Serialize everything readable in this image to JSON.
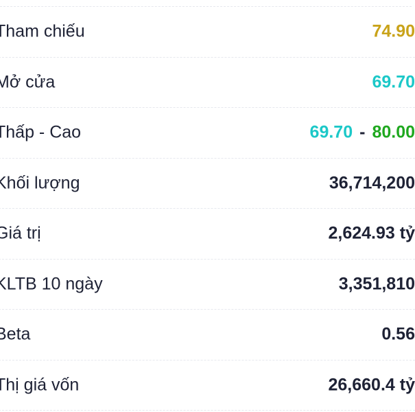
{
  "colors": {
    "reference": "#c9a31a",
    "cyan": "#1cc8c8",
    "green": "#1fa81f",
    "text": "#1e2235"
  },
  "stats": [
    {
      "label": "Tham chiếu",
      "value": "74.90"
    },
    {
      "label": "Mở cửa",
      "value": "69.70"
    },
    {
      "label": "Thấp - Cao",
      "low": "69.70",
      "separator": "-",
      "high": "80.00"
    },
    {
      "label": "Khối lượng",
      "value": "36,714,200"
    },
    {
      "label": "Giá trị",
      "value": "2,624.93 tỷ"
    },
    {
      "label": "KLTB 10 ngày",
      "value": "3,351,810"
    },
    {
      "label": "Beta",
      "value": "0.56"
    },
    {
      "label": "Thị giá vốn",
      "value": "26,660.4 tỷ"
    }
  ]
}
